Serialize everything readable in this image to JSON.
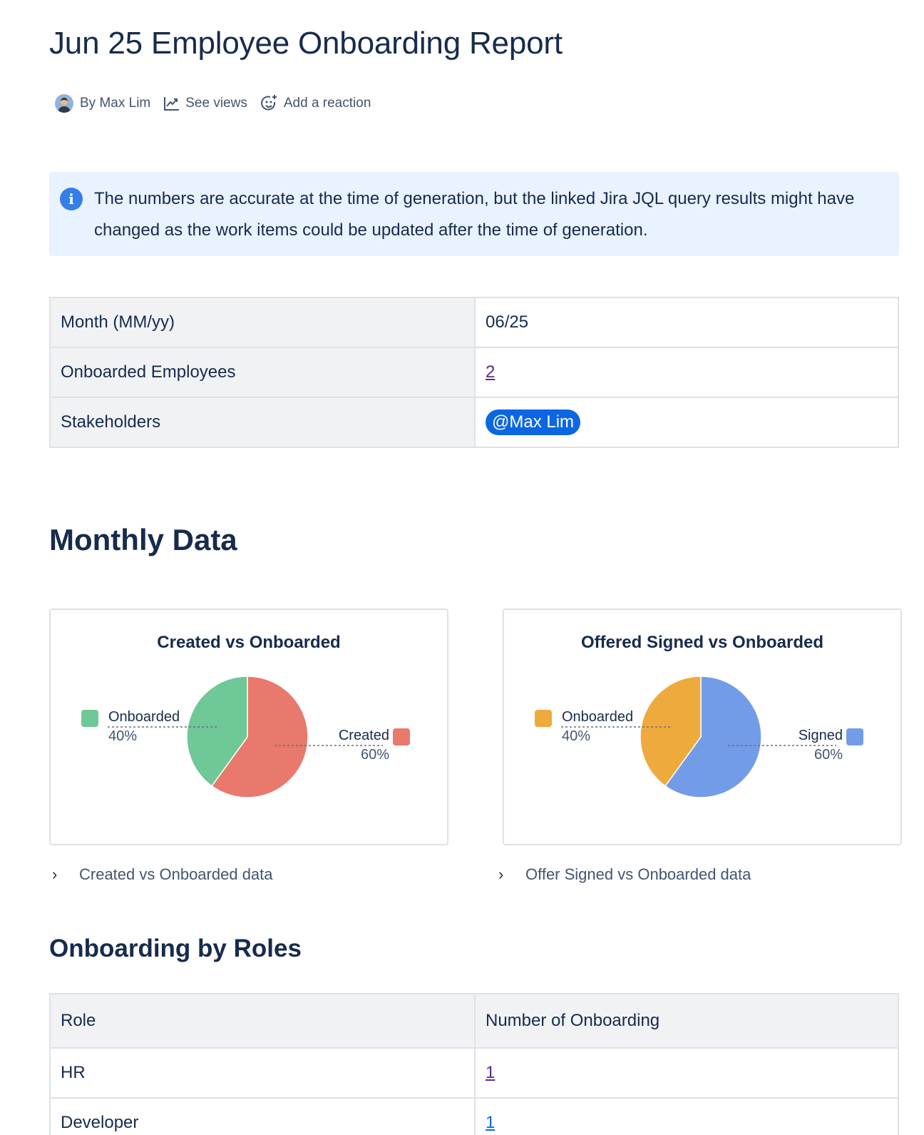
{
  "page": {
    "title": "Jun 25 Employee Onboarding Report"
  },
  "byline": {
    "author": "By Max Lim",
    "see_views": "See views",
    "add_reaction": "Add a reaction"
  },
  "info_panel": {
    "text": "The numbers are accurate at the time of generation, but the linked Jira JQL query results might have changed as the work items could be updated after the time of generation."
  },
  "summary_table": {
    "rows": [
      {
        "label": "Month (MM/yy)",
        "value": "06/25"
      },
      {
        "label": "Onboarded Employees",
        "value": "2"
      },
      {
        "label": "Stakeholders",
        "value": "@Max Lim"
      }
    ]
  },
  "sections": {
    "monthly_data": "Monthly Data",
    "onboarding_by_roles": "Onboarding by Roles"
  },
  "chart_data": [
    {
      "type": "pie",
      "title": "Created vs Onboarded",
      "categories": [
        "Created",
        "Onboarded"
      ],
      "values": [
        60,
        40
      ],
      "labels": [
        "60%",
        "40%"
      ],
      "colors": [
        "#e8796c",
        "#6fc897"
      ]
    },
    {
      "type": "pie",
      "title": "Offered Signed vs Onboarded",
      "categories": [
        "Signed",
        "Onboarded"
      ],
      "values": [
        60,
        40
      ],
      "labels": [
        "60%",
        "40%"
      ],
      "colors": [
        "#739ce8",
        "#efaa3d"
      ]
    }
  ],
  "expanders": {
    "left": "Created vs Onboarded data",
    "right": "Offer Signed vs Onboarded data"
  },
  "roles_table": {
    "headers": [
      "Role",
      "Number of Onboarding"
    ],
    "rows": [
      {
        "role": "HR",
        "count": "1"
      },
      {
        "role": "Developer",
        "count": "1"
      }
    ]
  }
}
